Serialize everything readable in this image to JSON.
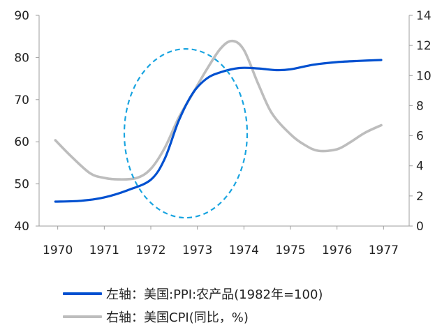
{
  "chart_data": {
    "type": "line",
    "x_ticks": [
      "1970",
      "1971",
      "1972",
      "1973",
      "1974",
      "1975",
      "1976",
      "1977"
    ],
    "left_axis": {
      "ylim": [
        40,
        90
      ],
      "ticks": [
        "40",
        "50",
        "60",
        "70",
        "80",
        "90"
      ]
    },
    "right_axis": {
      "ylim": [
        0,
        14
      ],
      "ticks": [
        "0",
        "2",
        "4",
        "6",
        "8",
        "10",
        "12",
        "14"
      ]
    },
    "series": [
      {
        "name": "左轴：美国:PPI:农产品(1982年=100)",
        "axis": "left",
        "color": "#0050d0",
        "points": [
          [
            1969.95,
            45.8
          ],
          [
            1970.5,
            46.0
          ],
          [
            1971.0,
            46.8
          ],
          [
            1971.5,
            48.5
          ],
          [
            1972.0,
            51.0
          ],
          [
            1972.3,
            56.0
          ],
          [
            1972.6,
            65.0
          ],
          [
            1972.9,
            71.5
          ],
          [
            1973.2,
            75.0
          ],
          [
            1973.5,
            76.5
          ],
          [
            1973.9,
            77.5
          ],
          [
            1974.3,
            77.4
          ],
          [
            1974.7,
            77.0
          ],
          [
            1975.0,
            77.2
          ],
          [
            1975.5,
            78.3
          ],
          [
            1976.0,
            78.9
          ],
          [
            1976.5,
            79.2
          ],
          [
            1976.95,
            79.4
          ]
        ]
      },
      {
        "name": "右轴：美国CPI(同比，%)",
        "axis": "right",
        "color": "#bdbdbd",
        "points": [
          [
            1969.95,
            5.7
          ],
          [
            1970.3,
            4.6
          ],
          [
            1970.7,
            3.5
          ],
          [
            1971.0,
            3.2
          ],
          [
            1971.3,
            3.1
          ],
          [
            1971.7,
            3.2
          ],
          [
            1972.0,
            3.8
          ],
          [
            1972.3,
            5.2
          ],
          [
            1972.6,
            7.2
          ],
          [
            1972.9,
            8.8
          ],
          [
            1973.2,
            10.4
          ],
          [
            1973.5,
            11.8
          ],
          [
            1973.75,
            12.3
          ],
          [
            1974.0,
            11.7
          ],
          [
            1974.3,
            9.5
          ],
          [
            1974.6,
            7.5
          ],
          [
            1975.0,
            6.1
          ],
          [
            1975.3,
            5.4
          ],
          [
            1975.6,
            5.0
          ],
          [
            1976.0,
            5.1
          ],
          [
            1976.3,
            5.6
          ],
          [
            1976.6,
            6.2
          ],
          [
            1976.95,
            6.7
          ]
        ]
      }
    ],
    "annotation": {
      "shape": "dashed-ellipse",
      "color": "#19a4e0",
      "x_center": 1972.75,
      "y_center_left": 62
    },
    "grid": false,
    "legend_position": "bottom"
  }
}
